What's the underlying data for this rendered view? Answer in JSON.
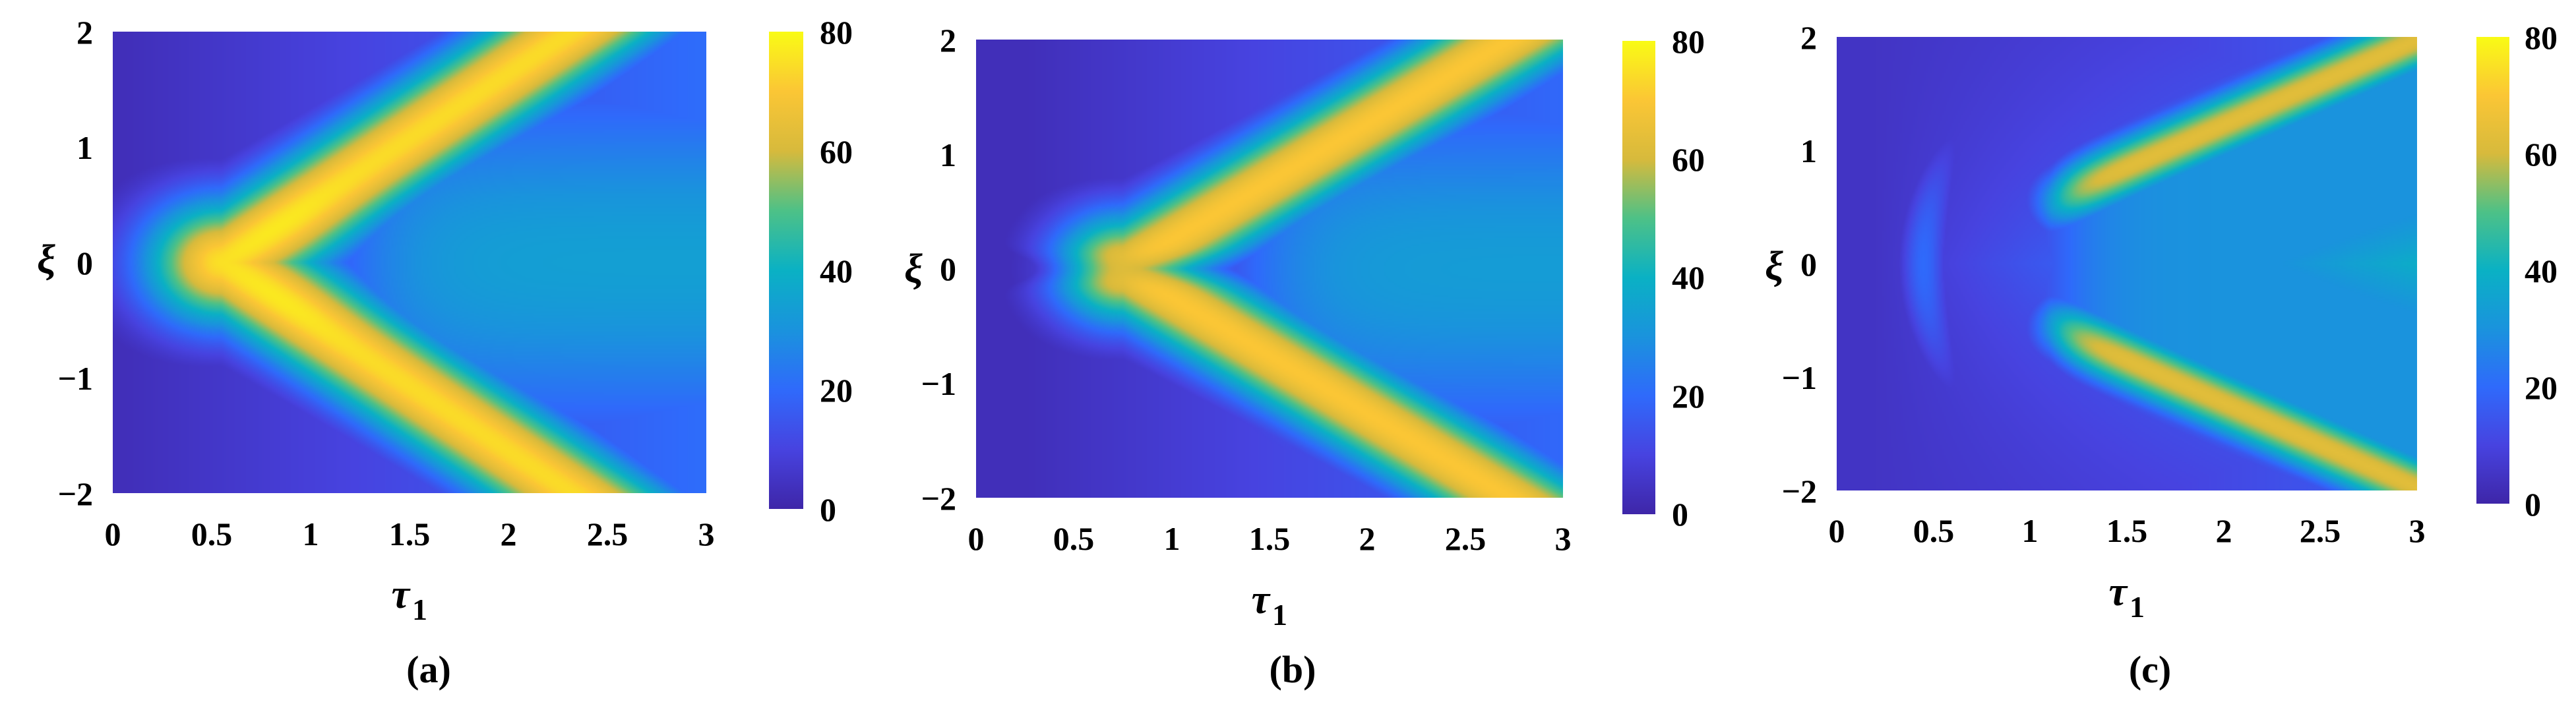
{
  "chart_data": [
    {
      "type": "heatmap",
      "caption": "(a)",
      "xlabel": "τ",
      "xlabel_sub": "1",
      "ylabel": "ξ",
      "xlim": [
        0,
        3
      ],
      "ylim": [
        -2,
        2
      ],
      "xticks": [
        "0",
        "0.5",
        "1",
        "1.5",
        "2",
        "2.5",
        "3"
      ],
      "yticks": [
        "−2",
        "−1",
        "0",
        "1",
        "2"
      ],
      "colorbar": {
        "min": 0,
        "max": 80,
        "ticks": [
          "0",
          "20",
          "40",
          "60",
          "80"
        ],
        "colormap": "parula"
      },
      "field": {
        "ridge_vertex_x": 0.55,
        "ridge_slope": 1.3,
        "ridge_width": 0.27,
        "ridge_peak": 74,
        "ridge_min": 68,
        "center_peak": 79,
        "split": 0,
        "split_start_x": 0,
        "interior_value": 34,
        "background": 3
      }
    },
    {
      "type": "heatmap",
      "caption": "(b)",
      "xlabel": "τ",
      "xlabel_sub": "1",
      "ylabel": "ξ",
      "xlim": [
        0,
        3
      ],
      "ylim": [
        -2,
        2
      ],
      "xticks": [
        "0",
        "0.5",
        "1",
        "1.5",
        "2",
        "2.5",
        "3"
      ],
      "yticks": [
        "−2",
        "−1",
        "0",
        "1",
        "2"
      ],
      "colorbar": {
        "min": 0,
        "max": 80,
        "ticks": [
          "0",
          "20",
          "40",
          "60",
          "80"
        ],
        "colormap": "parula"
      },
      "field": {
        "ridge_vertex_x": 0.75,
        "ridge_slope": 1.45,
        "ridge_width": 0.24,
        "ridge_peak": 70,
        "ridge_min": 66,
        "center_peak": 70,
        "split": 0.45,
        "split_start_x": 0.75,
        "interior_value": 33,
        "background": 3
      }
    },
    {
      "type": "heatmap",
      "caption": "(c)",
      "xlabel": "τ",
      "xlabel_sub": "1",
      "ylabel": "ξ",
      "xlim": [
        0,
        3
      ],
      "ylim": [
        -2,
        2
      ],
      "xticks": [
        "0",
        "0.5",
        "1",
        "1.5",
        "2",
        "2.5",
        "3"
      ],
      "yticks": [
        "−2",
        "−1",
        "0",
        "1",
        "2"
      ],
      "colorbar": {
        "min": 0,
        "max": 80,
        "ticks": [
          "0",
          "20",
          "40",
          "60",
          "80"
        ],
        "colormap": "parula"
      },
      "field": {
        "ridge_vertex_x": 1.1,
        "ridge_slope": 0.75,
        "ridge_width": 0.22,
        "ridge_peak": 68,
        "ridge_min": 65,
        "center_peak": 68,
        "split": 1.0,
        "split_start_x": 1.1,
        "interior_value": 30,
        "background": 3,
        "offset": 0.55,
        "inner_x": 0.45
      }
    }
  ],
  "panels_layout_note": "three heatmap panels side by side"
}
